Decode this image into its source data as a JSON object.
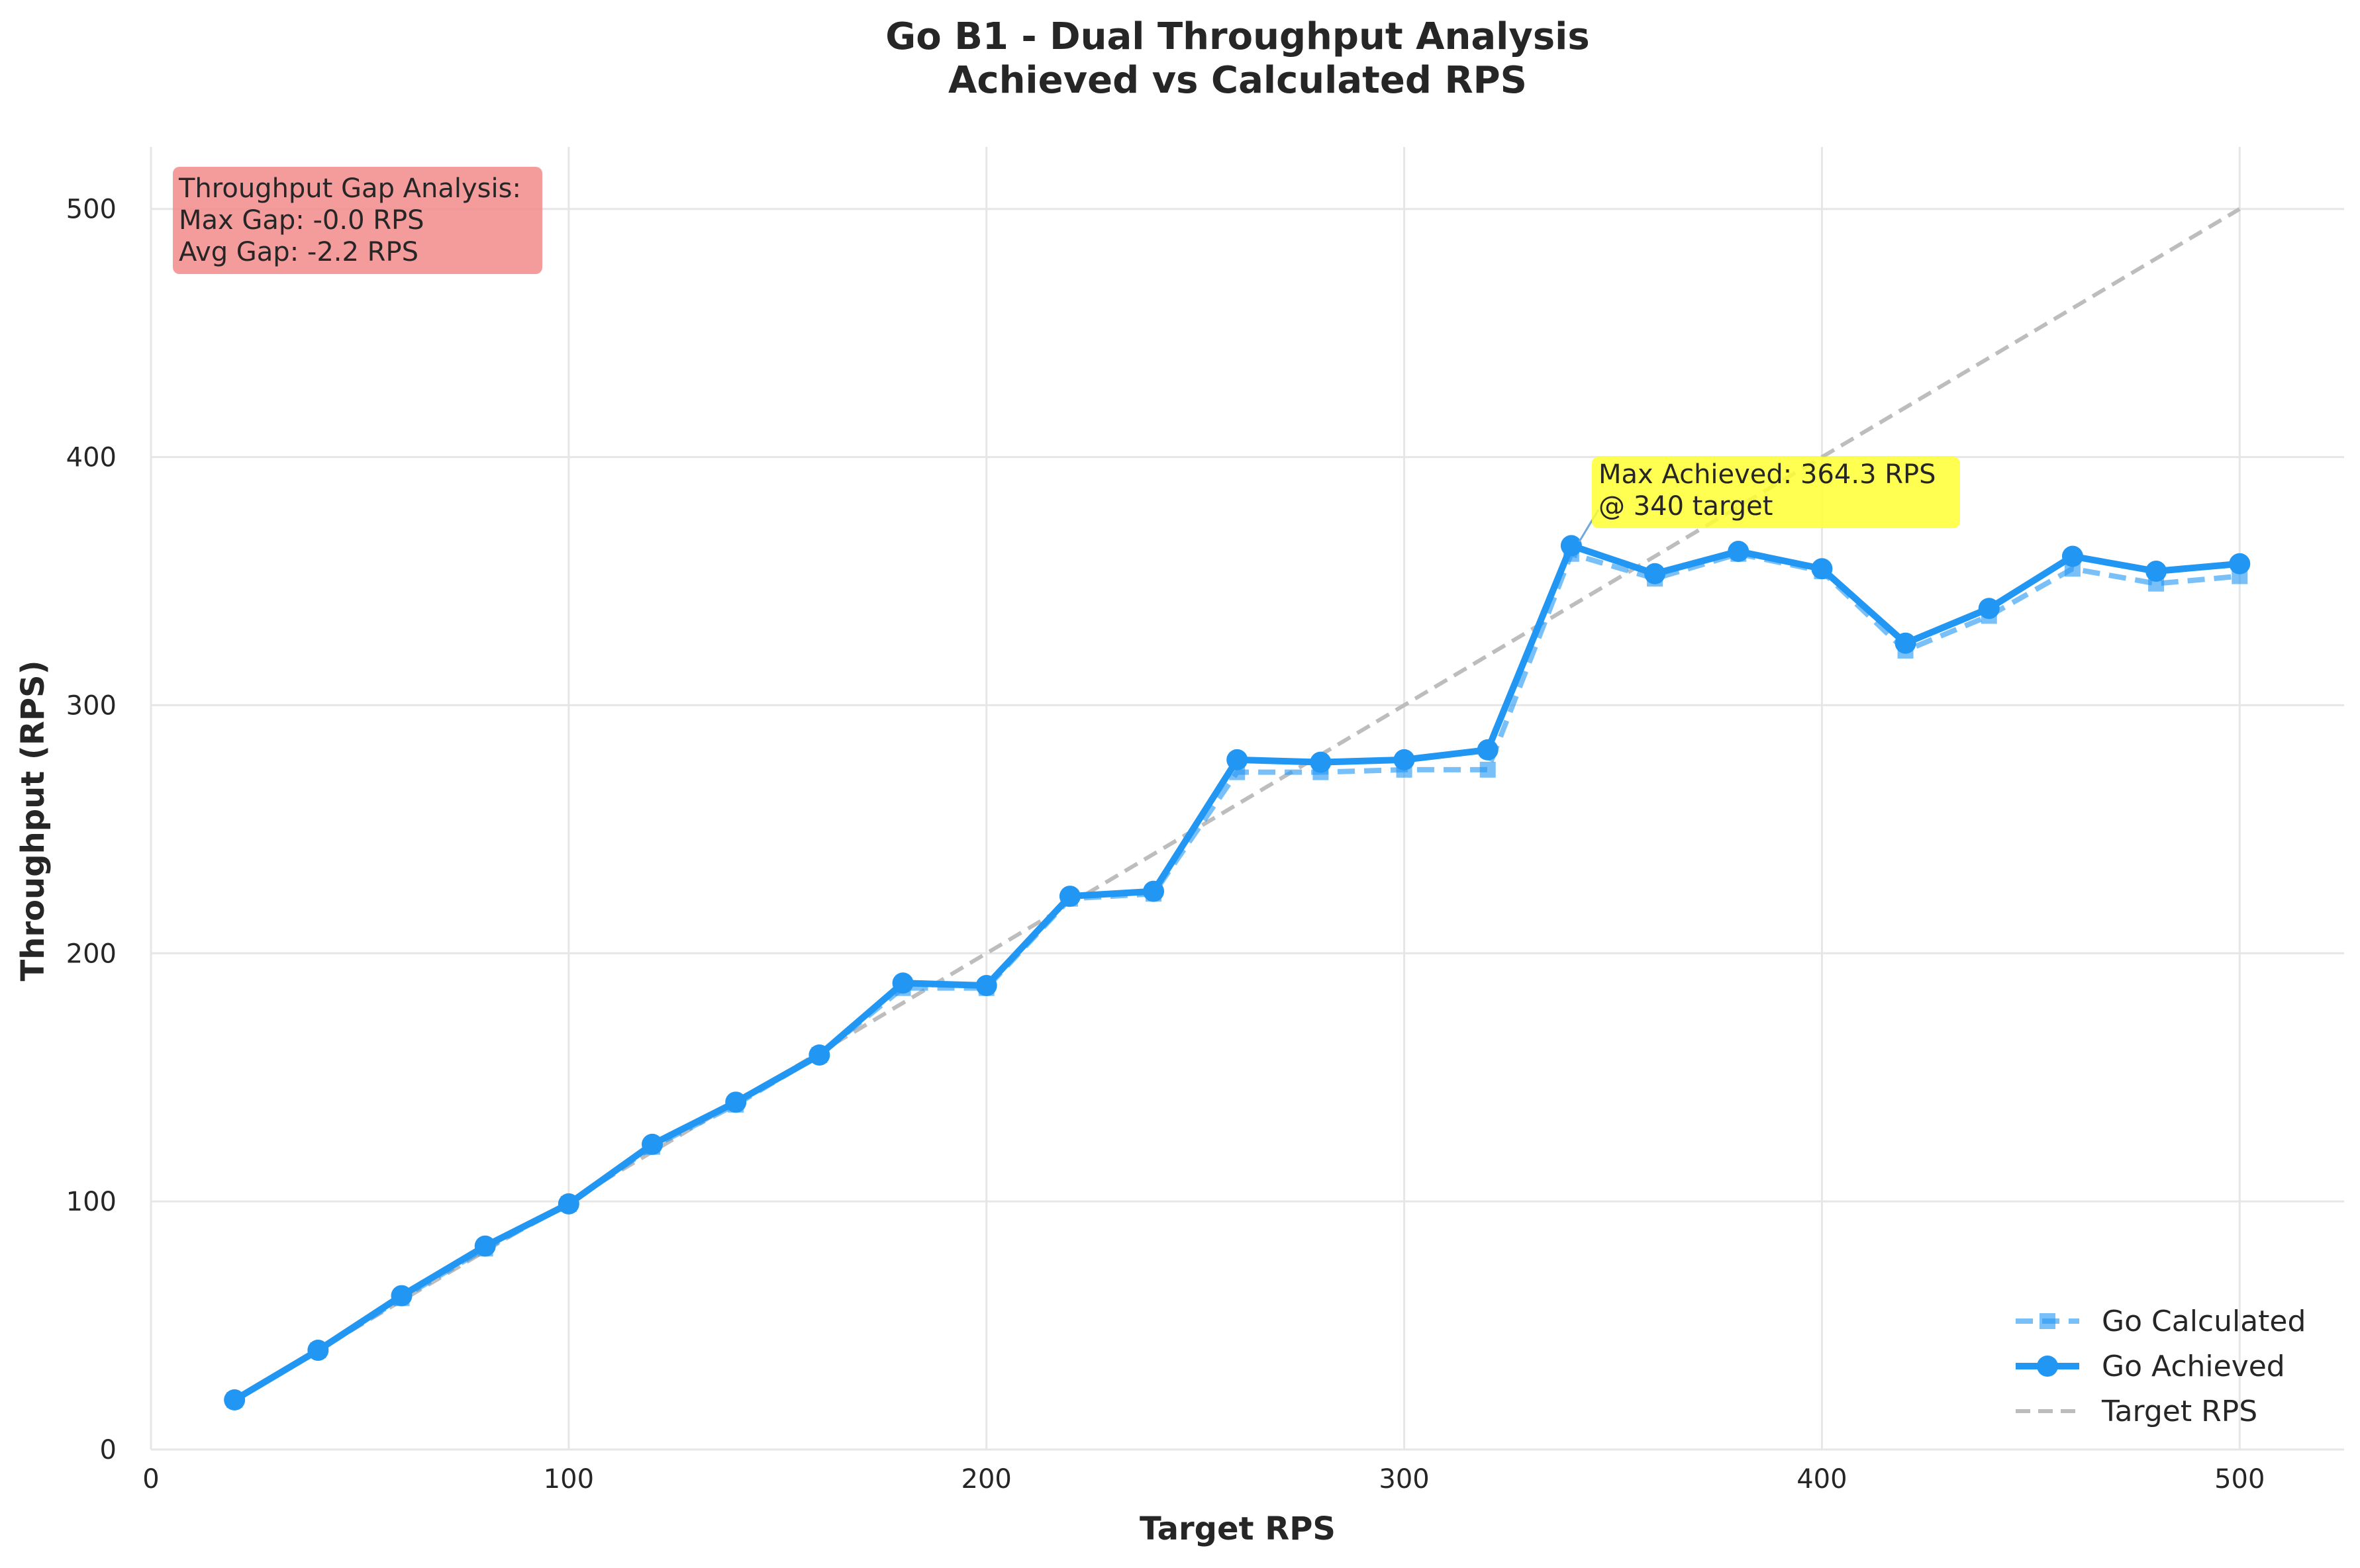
{
  "chart_data": {
    "type": "line",
    "title": "Go B1 - Dual Throughput Analysis",
    "subtitle": "Achieved vs Calculated RPS",
    "xlabel": "Target RPS",
    "ylabel": "Throughput (RPS)",
    "xlim": [
      0,
      525
    ],
    "ylim": [
      0,
      525
    ],
    "xticks": [
      0,
      100,
      200,
      300,
      400,
      500
    ],
    "yticks": [
      0,
      100,
      200,
      300,
      400,
      500
    ],
    "grid": true,
    "legend_position": "bottom-right",
    "x": [
      20,
      40,
      60,
      80,
      100,
      120,
      140,
      160,
      180,
      200,
      220,
      240,
      260,
      280,
      300,
      320,
      340,
      360,
      380,
      400,
      420,
      440,
      460,
      480,
      500
    ],
    "series": [
      {
        "name": "Go Calculated",
        "style": "dashed-square",
        "color": "#2196F3",
        "values": [
          20,
          40,
          61,
          81,
          99,
          122,
          139,
          159,
          186,
          186,
          222,
          224,
          273,
          273,
          274,
          274,
          361,
          351,
          361,
          354,
          322,
          336,
          355,
          349,
          352
        ]
      },
      {
        "name": "Go Achieved",
        "style": "solid-circle",
        "color": "#2196F3",
        "values": [
          20,
          40,
          62,
          82,
          99,
          123,
          140,
          159,
          188,
          187,
          223,
          225,
          278,
          277,
          278,
          282,
          364.3,
          353,
          362,
          355,
          325,
          339,
          360,
          354,
          357
        ]
      },
      {
        "name": "Target RPS",
        "style": "dashed",
        "color": "#bdbdbd",
        "x": [
          20,
          500
        ],
        "values": [
          20,
          500
        ]
      }
    ],
    "annotations": {
      "gap_box": {
        "lines": [
          "Throughput Gap Analysis:",
          "Max Gap: -0.0 RPS",
          "Avg Gap: -2.2 RPS"
        ],
        "color": "#f28b8b"
      },
      "max_point": {
        "lines": [
          "Max Achieved: 364.3 RPS",
          "@ 340 target"
        ],
        "color": "#ffff33",
        "x": 340,
        "y": 364.3
      }
    }
  }
}
